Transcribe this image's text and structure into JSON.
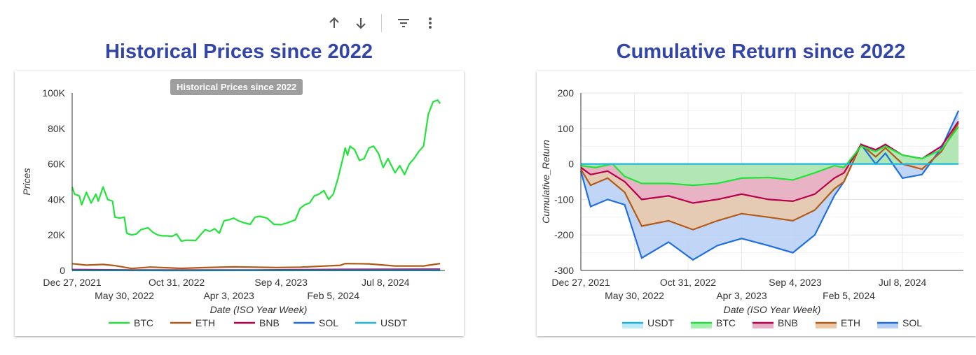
{
  "toolbar": {
    "icons": [
      "arrow-up-icon",
      "arrow-down-icon",
      "filter-icon",
      "more-vert-icon"
    ]
  },
  "charts": [
    {
      "tooltip": "Historical Prices since 2022"
    },
    {}
  ],
  "chart_data": [
    {
      "type": "line",
      "title": "Historical Prices since 2022",
      "xlabel": "Date (ISO Year Week)",
      "ylabel": "Prices",
      "ylim": [
        0,
        100000
      ],
      "y_ticks": [
        "0",
        "20K",
        "40K",
        "60K",
        "80K",
        "100K"
      ],
      "y_tick_values": [
        0,
        20000,
        40000,
        60000,
        80000,
        100000
      ],
      "x_range": [
        "2021-12-27",
        "2024-12-30"
      ],
      "x_ticks_row1": [
        [
          "Dec 27, 2021",
          "2021-12-27"
        ],
        [
          "Oct 31, 2022",
          "2022-10-31"
        ],
        [
          "Sep 4, 2023",
          "2023-09-04"
        ],
        [
          "Jul 8, 2024",
          "2024-07-08"
        ]
      ],
      "x_ticks_row2": [
        [
          "May 30, 2022",
          "2022-05-30"
        ],
        [
          "Apr 3, 2023",
          "2023-04-03"
        ],
        [
          "Feb 5, 2024",
          "2024-02-05"
        ]
      ],
      "grid": false,
      "legend": "bottom",
      "colors": {
        "BTC": "#22e33a",
        "ETH": "#b35a17",
        "BNB": "#b8004f",
        "SOL": "#1f6fe0",
        "USDT": "#1cb7e0"
      },
      "series": [
        {
          "name": "BTC",
          "points": [
            [
              "2021-12-27",
              47000
            ],
            [
              "2022-01-03",
              43000
            ],
            [
              "2022-01-17",
              42000
            ],
            [
              "2022-01-24",
              37000
            ],
            [
              "2022-02-07",
              44000
            ],
            [
              "2022-02-21",
              38000
            ],
            [
              "2022-03-07",
              43000
            ],
            [
              "2022-03-14",
              39000
            ],
            [
              "2022-03-28",
              47000
            ],
            [
              "2022-04-11",
              40000
            ],
            [
              "2022-04-25",
              39000
            ],
            [
              "2022-05-02",
              30000
            ],
            [
              "2022-05-16",
              29500
            ],
            [
              "2022-05-30",
              30000
            ],
            [
              "2022-06-06",
              21000
            ],
            [
              "2022-06-20",
              20000
            ],
            [
              "2022-07-04",
              20500
            ],
            [
              "2022-07-18",
              23000
            ],
            [
              "2022-08-08",
              24000
            ],
            [
              "2022-08-22",
              21500
            ],
            [
              "2022-09-05",
              20000
            ],
            [
              "2022-09-19",
              19500
            ],
            [
              "2022-10-03",
              19500
            ],
            [
              "2022-10-17",
              19200
            ],
            [
              "2022-10-31",
              20500
            ],
            [
              "2022-11-14",
              16500
            ],
            [
              "2022-11-28",
              17000
            ],
            [
              "2022-12-12",
              17000
            ],
            [
              "2022-12-26",
              16800
            ],
            [
              "2023-01-09",
              20000
            ],
            [
              "2023-01-23",
              23000
            ],
            [
              "2023-02-06",
              22000
            ],
            [
              "2023-02-20",
              23500
            ],
            [
              "2023-03-06",
              21000
            ],
            [
              "2023-03-20",
              28000
            ],
            [
              "2023-04-03",
              28500
            ],
            [
              "2023-04-17",
              29500
            ],
            [
              "2023-05-01",
              28000
            ],
            [
              "2023-05-15",
              27000
            ],
            [
              "2023-06-05",
              26000
            ],
            [
              "2023-06-19",
              30000
            ],
            [
              "2023-07-03",
              30500
            ],
            [
              "2023-07-24",
              29500
            ],
            [
              "2023-08-14",
              26000
            ],
            [
              "2023-09-04",
              25800
            ],
            [
              "2023-09-25",
              27000
            ],
            [
              "2023-10-16",
              28500
            ],
            [
              "2023-10-30",
              35000
            ],
            [
              "2023-11-13",
              37000
            ],
            [
              "2023-11-27",
              38000
            ],
            [
              "2023-12-11",
              42000
            ],
            [
              "2023-12-25",
              43000
            ],
            [
              "2024-01-08",
              45000
            ],
            [
              "2024-01-22",
              40000
            ],
            [
              "2024-02-05",
              43000
            ],
            [
              "2024-02-19",
              52000
            ],
            [
              "2024-03-04",
              63000
            ],
            [
              "2024-03-11",
              69000
            ],
            [
              "2024-03-18",
              65000
            ],
            [
              "2024-03-25",
              70000
            ],
            [
              "2024-04-08",
              68000
            ],
            [
              "2024-04-22",
              62000
            ],
            [
              "2024-05-06",
              63000
            ],
            [
              "2024-05-20",
              69000
            ],
            [
              "2024-06-03",
              70000
            ],
            [
              "2024-06-17",
              66000
            ],
            [
              "2024-07-01",
              58000
            ],
            [
              "2024-07-15",
              63000
            ],
            [
              "2024-08-05",
              55000
            ],
            [
              "2024-08-19",
              59000
            ],
            [
              "2024-09-02",
              54000
            ],
            [
              "2024-09-16",
              60000
            ],
            [
              "2024-09-30",
              63000
            ],
            [
              "2024-10-14",
              67000
            ],
            [
              "2024-10-28",
              70000
            ],
            [
              "2024-11-11",
              88000
            ],
            [
              "2024-11-25",
              95000
            ],
            [
              "2024-12-09",
              96000
            ],
            [
              "2024-12-16",
              94000
            ]
          ]
        },
        {
          "name": "ETH",
          "points": [
            [
              "2021-12-27",
              3800
            ],
            [
              "2022-02-07",
              3000
            ],
            [
              "2022-03-28",
              3400
            ],
            [
              "2022-05-02",
              2700
            ],
            [
              "2022-06-20",
              1100
            ],
            [
              "2022-08-15",
              1900
            ],
            [
              "2022-11-14",
              1200
            ],
            [
              "2023-01-23",
              1600
            ],
            [
              "2023-04-17",
              2000
            ],
            [
              "2023-08-21",
              1650
            ],
            [
              "2023-10-30",
              1800
            ],
            [
              "2024-02-26",
              2900
            ],
            [
              "2024-03-11",
              3900
            ],
            [
              "2024-05-20",
              3700
            ],
            [
              "2024-08-05",
              2500
            ],
            [
              "2024-10-28",
              2500
            ],
            [
              "2024-12-16",
              3900
            ]
          ]
        },
        {
          "name": "BNB",
          "points": [
            [
              "2021-12-27",
              520
            ],
            [
              "2022-06-20",
              230
            ],
            [
              "2023-06-12",
              250
            ],
            [
              "2024-03-11",
              600
            ],
            [
              "2024-12-16",
              700
            ]
          ]
        },
        {
          "name": "SOL",
          "points": [
            [
              "2021-12-27",
              170
            ],
            [
              "2022-06-20",
              35
            ],
            [
              "2022-12-26",
              10
            ],
            [
              "2024-03-18",
              190
            ],
            [
              "2024-12-16",
              220
            ]
          ]
        },
        {
          "name": "USDT",
          "points": [
            [
              "2021-12-27",
              1
            ],
            [
              "2024-12-16",
              1
            ]
          ]
        }
      ]
    },
    {
      "type": "area",
      "title": "Cumulative Return since 2022",
      "xlabel": "Date (ISO Year Week)",
      "ylabel": "Cumulative_Return",
      "ylim": [
        -300,
        200
      ],
      "y_ticks": [
        "-300",
        "-200",
        "-100",
        "0",
        "100",
        "200"
      ],
      "y_tick_values": [
        -300,
        -200,
        -100,
        0,
        100,
        200
      ],
      "x_range": [
        "2021-12-27",
        "2024-12-30"
      ],
      "x_ticks_row1": [
        [
          "Dec 27, 2021",
          "2021-12-27"
        ],
        [
          "Oct 31, 2022",
          "2022-10-31"
        ],
        [
          "Sep 4, 2023",
          "2023-09-04"
        ],
        [
          "Jul 8, 2024",
          "2024-07-08"
        ]
      ],
      "x_ticks_row2": [
        [
          "May 30, 2022",
          "2022-05-30"
        ],
        [
          "Apr 3, 2023",
          "2023-04-03"
        ],
        [
          "Feb 5, 2024",
          "2024-02-05"
        ]
      ],
      "grid": true,
      "legend": "bottom",
      "stacked": true,
      "colors": {
        "USDT": "#1cb7e0",
        "BTC": "#22e33a",
        "BNB": "#b8004f",
        "ETH": "#b35a17",
        "SOL": "#1f6fe0"
      },
      "fills": {
        "USDT": "#bfeaf7",
        "BTC": "#a8f0b1",
        "BNB": "#e8b0c8",
        "ETH": "#ecc9a8",
        "SOL": "#b6cff5"
      },
      "series": [
        {
          "name": "USDT",
          "points": [
            [
              "2021-12-27",
              0
            ],
            [
              "2024-12-16",
              0
            ]
          ]
        },
        {
          "name": "BTC",
          "points": [
            [
              "2021-12-27",
              -5
            ],
            [
              "2022-02-07",
              -10
            ],
            [
              "2022-03-28",
              0
            ],
            [
              "2022-05-02",
              -35
            ],
            [
              "2022-06-20",
              -55
            ],
            [
              "2022-09-05",
              -55
            ],
            [
              "2022-11-14",
              -60
            ],
            [
              "2023-01-23",
              -55
            ],
            [
              "2023-04-03",
              -40
            ],
            [
              "2023-06-19",
              -38
            ],
            [
              "2023-08-28",
              -45
            ],
            [
              "2023-10-30",
              -25
            ],
            [
              "2023-12-25",
              -5
            ],
            [
              "2024-01-22",
              -10
            ],
            [
              "2024-03-11",
              50
            ],
            [
              "2024-04-22",
              35
            ],
            [
              "2024-05-20",
              50
            ],
            [
              "2024-07-08",
              25
            ],
            [
              "2024-09-02",
              15
            ],
            [
              "2024-10-28",
              40
            ],
            [
              "2024-12-16",
              105
            ]
          ]
        },
        {
          "name": "BNB",
          "points": [
            [
              "2021-12-27",
              -10
            ],
            [
              "2022-01-24",
              -30
            ],
            [
              "2022-03-14",
              -20
            ],
            [
              "2022-05-02",
              -50
            ],
            [
              "2022-06-20",
              -100
            ],
            [
              "2022-09-05",
              -90
            ],
            [
              "2022-11-14",
              -110
            ],
            [
              "2023-01-23",
              -100
            ],
            [
              "2023-04-03",
              -85
            ],
            [
              "2023-06-19",
              -100
            ],
            [
              "2023-08-28",
              -105
            ],
            [
              "2023-10-30",
              -85
            ],
            [
              "2023-12-25",
              -40
            ],
            [
              "2024-01-22",
              -25
            ],
            [
              "2024-03-11",
              55
            ],
            [
              "2024-04-22",
              40
            ],
            [
              "2024-05-20",
              55
            ],
            [
              "2024-07-08",
              25
            ],
            [
              "2024-09-02",
              15
            ],
            [
              "2024-10-28",
              50
            ],
            [
              "2024-12-16",
              120
            ]
          ]
        },
        {
          "name": "ETH",
          "points": [
            [
              "2021-12-27",
              -15
            ],
            [
              "2022-01-24",
              -60
            ],
            [
              "2022-03-14",
              -40
            ],
            [
              "2022-05-02",
              -80
            ],
            [
              "2022-06-20",
              -175
            ],
            [
              "2022-09-05",
              -160
            ],
            [
              "2022-11-14",
              -185
            ],
            [
              "2023-01-23",
              -160
            ],
            [
              "2023-04-03",
              -140
            ],
            [
              "2023-06-19",
              -150
            ],
            [
              "2023-08-28",
              -160
            ],
            [
              "2023-10-30",
              -130
            ],
            [
              "2023-12-25",
              -70
            ],
            [
              "2024-01-22",
              -50
            ],
            [
              "2024-03-11",
              55
            ],
            [
              "2024-04-22",
              20
            ],
            [
              "2024-05-20",
              45
            ],
            [
              "2024-07-08",
              0
            ],
            [
              "2024-09-02",
              -15
            ],
            [
              "2024-10-28",
              35
            ],
            [
              "2024-12-16",
              115
            ]
          ]
        },
        {
          "name": "SOL",
          "points": [
            [
              "2021-12-27",
              -20
            ],
            [
              "2022-01-24",
              -120
            ],
            [
              "2022-03-14",
              -100
            ],
            [
              "2022-05-02",
              -115
            ],
            [
              "2022-06-20",
              -265
            ],
            [
              "2022-09-05",
              -220
            ],
            [
              "2022-11-14",
              -270
            ],
            [
              "2023-01-23",
              -230
            ],
            [
              "2023-04-03",
              -210
            ],
            [
              "2023-06-19",
              -230
            ],
            [
              "2023-08-28",
              -250
            ],
            [
              "2023-10-30",
              -200
            ],
            [
              "2023-12-25",
              -90
            ],
            [
              "2024-01-22",
              -50
            ],
            [
              "2024-03-11",
              55
            ],
            [
              "2024-04-22",
              0
            ],
            [
              "2024-05-20",
              30
            ],
            [
              "2024-07-08",
              -40
            ],
            [
              "2024-09-02",
              -30
            ],
            [
              "2024-10-28",
              45
            ],
            [
              "2024-12-16",
              150
            ]
          ]
        }
      ]
    }
  ]
}
